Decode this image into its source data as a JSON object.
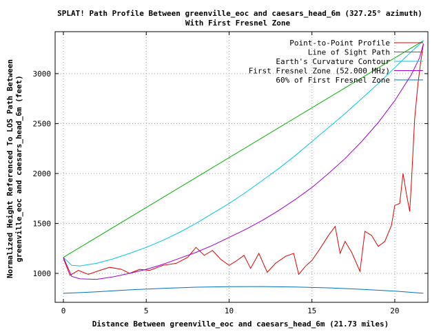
{
  "chart_data": {
    "type": "line",
    "title": "SPLAT! Path Profile Between greenville_eoc and caesars_head_6m (327.25° azimuth)",
    "subtitle": "With First Fresnel Zone",
    "xlabel": "Distance Between greenville_eoc and caesars_head_6m (21.73 miles)",
    "ylabel_line1": "Normalized Height Referenced To LOS Path Between",
    "ylabel_line2": "greenville_eoc and caesars_head_6m (feet)",
    "xlim": [
      -0.5,
      22.0
    ],
    "ylim": [
      710,
      3420
    ],
    "x_ticks": [
      "0",
      "5",
      "10",
      "15",
      "20"
    ],
    "x_tick_values": [
      0,
      5,
      10,
      15,
      20
    ],
    "y_ticks": [
      "1000",
      "1500",
      "2000",
      "2500",
      "3000"
    ],
    "y_tick_values": [
      1000,
      1500,
      2000,
      2500,
      3000
    ],
    "grid": true,
    "legend_position": "top-right",
    "series": [
      {
        "name": "Point-to-Point Profile",
        "color": "#e00000",
        "x": [
          0,
          0.4,
          0.9,
          1.5,
          2.2,
          2.8,
          3.5,
          4.0,
          4.6,
          5.2,
          6.0,
          6.8,
          7.5,
          8.0,
          8.5,
          9.0,
          9.5,
          10.0,
          10.4,
          10.9,
          11.3,
          11.8,
          12.3,
          12.8,
          13.4,
          13.9,
          14.2,
          14.6,
          15.0,
          15.5,
          16.0,
          16.4,
          16.7,
          17.0,
          17.4,
          17.9,
          18.2,
          18.6,
          19.0,
          19.4,
          19.8,
          20.0,
          20.3,
          20.5,
          20.7,
          20.9,
          21.0,
          21.2,
          21.4,
          21.55,
          21.73
        ],
        "y": [
          1150,
          980,
          1030,
          990,
          1030,
          1060,
          1040,
          1000,
          1040,
          1030,
          1080,
          1100,
          1160,
          1260,
          1180,
          1230,
          1140,
          1080,
          1120,
          1180,
          1050,
          1200,
          1010,
          1100,
          1170,
          1200,
          990,
          1070,
          1130,
          1250,
          1380,
          1470,
          1200,
          1320,
          1210,
          1020,
          1420,
          1380,
          1270,
          1320,
          1480,
          1680,
          1700,
          2000,
          1800,
          1620,
          1900,
          2550,
          2900,
          3100,
          3300
        ]
      },
      {
        "name": "Line of Sight Path",
        "color": "#00b000",
        "x": [
          0,
          21.73
        ],
        "y": [
          1160,
          3330
        ]
      },
      {
        "name": "Earth's Curvature Contour",
        "color": "#00c8e0",
        "x": [
          0,
          0.5,
          1.0,
          2.0,
          3.0,
          4.0,
          5.0,
          6.0,
          7.0,
          8.0,
          9.0,
          10.0,
          11.0,
          12.0,
          13.0,
          14.0,
          15.0,
          16.0,
          17.0,
          18.0,
          19.0,
          20.0,
          21.0,
          21.73
        ],
        "y": [
          1160,
          1080,
          1075,
          1100,
          1145,
          1200,
          1260,
          1330,
          1410,
          1500,
          1600,
          1700,
          1810,
          1930,
          2050,
          2180,
          2320,
          2460,
          2600,
          2750,
          2900,
          3060,
          3220,
          3330
        ]
      },
      {
        "name": "First Fresnel Zone (52.000 MHz)",
        "color": "#a000d0",
        "x": [
          0,
          0.5,
          1.0,
          2.0,
          3.0,
          4.0,
          5.0,
          6.0,
          7.0,
          8.0,
          9.0,
          10.0,
          11.0,
          12.0,
          13.0,
          14.0,
          15.0,
          16.0,
          17.0,
          18.0,
          19.0,
          20.0,
          21.0,
          21.5,
          21.73
        ],
        "y": [
          1160,
          970,
          945,
          940,
          965,
          1000,
          1040,
          1090,
          1150,
          1210,
          1280,
          1360,
          1440,
          1530,
          1630,
          1740,
          1860,
          2000,
          2150,
          2320,
          2510,
          2730,
          2990,
          3160,
          3300
        ]
      },
      {
        "name": "60% of First Fresnel Zone",
        "color": "#0070c0",
        "x": [
          0,
          2,
          4,
          6,
          8,
          10,
          12,
          14,
          16,
          18,
          20,
          21,
          21.73
        ],
        "y": [
          800,
          815,
          835,
          850,
          862,
          867,
          868,
          864,
          855,
          840,
          822,
          810,
          800
        ]
      }
    ]
  }
}
